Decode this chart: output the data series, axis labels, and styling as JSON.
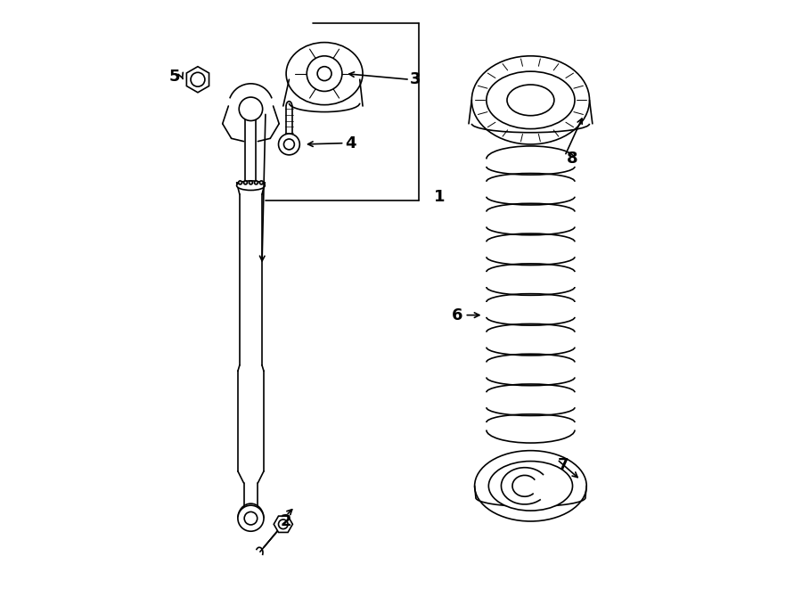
{
  "bg_color": "#ffffff",
  "line_color": "#000000",
  "label_color": "#000000",
  "fig_width": 9.0,
  "fig_height": 6.61,
  "dpi": 100
}
